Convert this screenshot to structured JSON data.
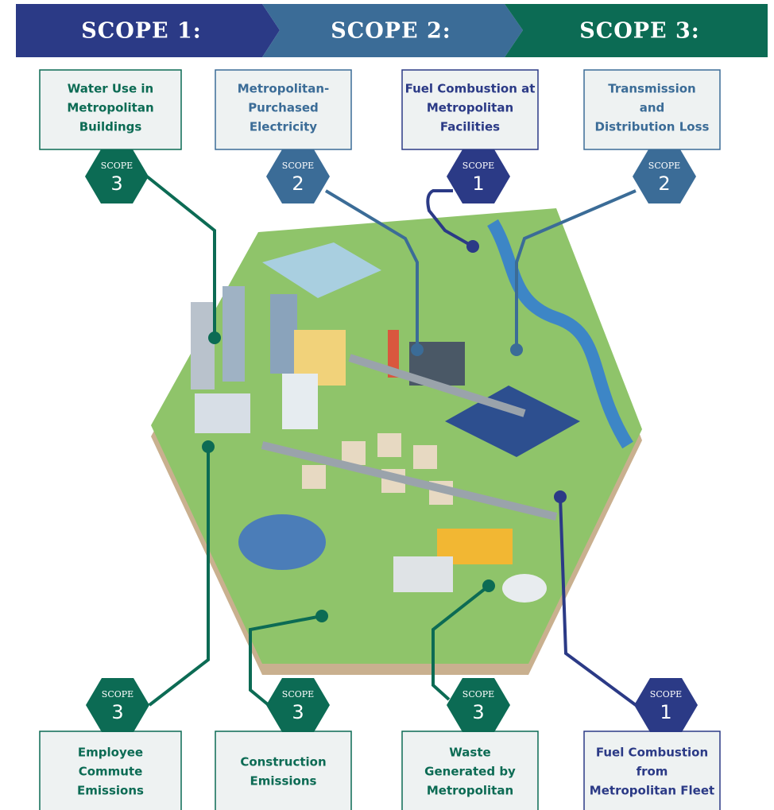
{
  "header": {
    "scopes": [
      {
        "label": "SCOPE 1:",
        "color": "#2b3a86"
      },
      {
        "label": "SCOPE 2:",
        "color": "#3b6c97"
      },
      {
        "label": "SCOPE 3:",
        "color": "#0c6b54"
      }
    ]
  },
  "top_boxes": [
    {
      "lines": [
        "Water Use in",
        "Metropolitan",
        "Buildings"
      ],
      "badge": "SCOPE",
      "scope": 3
    },
    {
      "lines": [
        "Metropolitan-",
        "Purchased",
        "Electricity"
      ],
      "badge": "SCOPE",
      "scope": 2
    },
    {
      "lines": [
        "Fuel Combustion at",
        "Metropolitan",
        "Facilities"
      ],
      "badge": "SCOPE",
      "scope": 1
    },
    {
      "lines": [
        "Transmission",
        "and",
        "Distribution Loss"
      ],
      "badge": "SCOPE",
      "scope": 2
    }
  ],
  "bottom_boxes": [
    {
      "lines": [
        "Employee",
        "Commute",
        "Emissions"
      ],
      "badge": "SCOPE",
      "scope": 3
    },
    {
      "lines": [
        "Construction",
        "Emissions"
      ],
      "badge": "SCOPE",
      "scope": 3
    },
    {
      "lines": [
        "Waste",
        "Generated by",
        "Metropolitan"
      ],
      "badge": "SCOPE",
      "scope": 3
    },
    {
      "lines": [
        "Fuel Combustion",
        "from",
        "Metropolitan Fleet"
      ],
      "badge": "SCOPE",
      "scope": 1
    }
  ]
}
